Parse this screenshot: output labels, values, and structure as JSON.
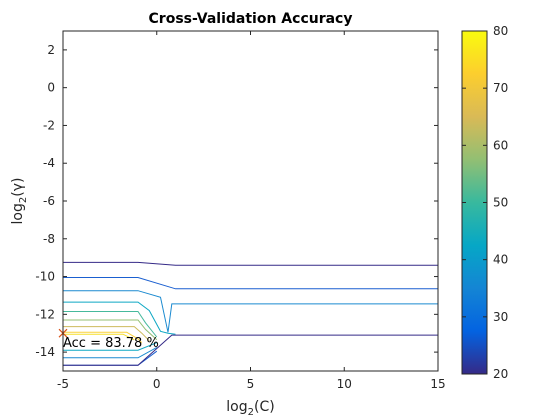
{
  "chart_data": {
    "type": "contour",
    "title": "Cross-Validation Accuracy",
    "xlabel": {
      "main": "log",
      "sub": "2",
      "tail": "(C)"
    },
    "ylabel": {
      "main": "log",
      "sub": "2",
      "tail": "(γ)"
    },
    "xlim": [
      -5,
      15
    ],
    "ylim": [
      -15,
      3
    ],
    "xticks": [
      -5,
      0,
      5,
      10,
      15
    ],
    "xtick_labels": [
      "-5",
      "0",
      "5",
      "10",
      "15"
    ],
    "yticks": [
      2,
      0,
      -2,
      -4,
      -6,
      -8,
      -10,
      -12,
      -14
    ],
    "ytick_labels": [
      "2",
      "0",
      "-2",
      "-4",
      "-6",
      "-8",
      "-10",
      "-12",
      "-14"
    ],
    "colorbar": {
      "range": [
        20,
        80
      ],
      "ticks": [
        80,
        70,
        60,
        50,
        40,
        30,
        20
      ],
      "tick_labels": [
        "80",
        "70",
        "60",
        "50",
        "40",
        "30",
        "20"
      ],
      "colormap": [
        "#352a87",
        "#0363e1",
        "#1485d4",
        "#06a7c6",
        "#38b99e",
        "#92bf73",
        "#d9ba56",
        "#fcce2e",
        "#f9fb0e"
      ]
    },
    "contour_lines": [
      {
        "level": 20,
        "color": "#352a87",
        "points": [
          [
            -5,
            -9.25
          ],
          [
            -1,
            -9.25
          ],
          [
            1,
            -9.4
          ],
          [
            15,
            -9.4
          ]
        ]
      },
      {
        "level": 27.5,
        "color": "#1a5fd0",
        "points": [
          [
            -5,
            -10.05
          ],
          [
            -1,
            -10.05
          ],
          [
            1,
            -10.65
          ],
          [
            15,
            -10.65
          ]
        ]
      },
      {
        "level": 35,
        "color": "#1b8ad0",
        "points": [
          [
            -5,
            -10.75
          ],
          [
            -1,
            -10.75
          ],
          [
            0.2,
            -11.1
          ],
          [
            0.6,
            -12.95
          ],
          [
            0.8,
            -11.45
          ],
          [
            15,
            -11.45
          ]
        ]
      },
      {
        "level": 42.5,
        "color": "#0fa8c4",
        "points": [
          [
            -5,
            -11.35
          ],
          [
            -1,
            -11.35
          ],
          [
            -0.4,
            -11.8
          ],
          [
            0.2,
            -12.9
          ],
          [
            0.6,
            -13.0
          ],
          [
            1.0,
            -13.05
          ]
        ]
      },
      {
        "level": 50,
        "color": "#46b99c",
        "points": [
          [
            -5,
            -11.85
          ],
          [
            -1,
            -11.85
          ],
          [
            -0.6,
            -12.45
          ],
          [
            0.0,
            -13.2
          ]
        ]
      },
      {
        "level": 57.5,
        "color": "#94bf73",
        "points": [
          [
            -5,
            -12.3
          ],
          [
            -1,
            -12.3
          ],
          [
            -0.6,
            -12.8
          ],
          [
            0.0,
            -13.35
          ]
        ]
      },
      {
        "level": 65,
        "color": "#cdbb5d",
        "points": [
          [
            -5,
            -12.65
          ],
          [
            -1.2,
            -12.65
          ],
          [
            -0.8,
            -13.0
          ],
          [
            -0.4,
            -13.4
          ]
        ]
      },
      {
        "level": 72.5,
        "color": "#fbd23a",
        "points": [
          [
            -5,
            -12.95
          ],
          [
            -1.6,
            -12.95
          ],
          [
            -1.0,
            -13.3
          ],
          [
            -0.8,
            -13.5
          ]
        ]
      },
      {
        "level": 72.5,
        "color": "#f6df2a",
        "points": [
          [
            -5,
            -13.05
          ],
          [
            -1.8,
            -13.05
          ],
          [
            -1.2,
            -13.35
          ]
        ]
      },
      {
        "level": 42.5,
        "color": "#0fa8c4",
        "points": [
          [
            -5,
            -13.9
          ],
          [
            -1,
            -13.9
          ],
          [
            0.0,
            -13.5
          ]
        ]
      },
      {
        "level": 35,
        "color": "#1b8ad0",
        "points": [
          [
            -5,
            -14.3
          ],
          [
            -1,
            -14.3
          ],
          [
            0.0,
            -13.75
          ]
        ]
      },
      {
        "level": 27.5,
        "color": "#1a5fd0",
        "points": [
          [
            -5,
            -14.7
          ],
          [
            -1,
            -14.7
          ],
          [
            0.0,
            -13.95
          ]
        ]
      },
      {
        "level": 20,
        "color": "#352a87",
        "points": [
          [
            -5,
            -14.7
          ],
          [
            -1,
            -14.7
          ],
          [
            0.8,
            -13.1
          ],
          [
            15,
            -13.1
          ]
        ]
      }
    ],
    "best_point": {
      "x": -5,
      "y": -13,
      "marker": "x",
      "color": "#d95319"
    },
    "annotation": "Acc = 83.78 %",
    "grid": false
  }
}
